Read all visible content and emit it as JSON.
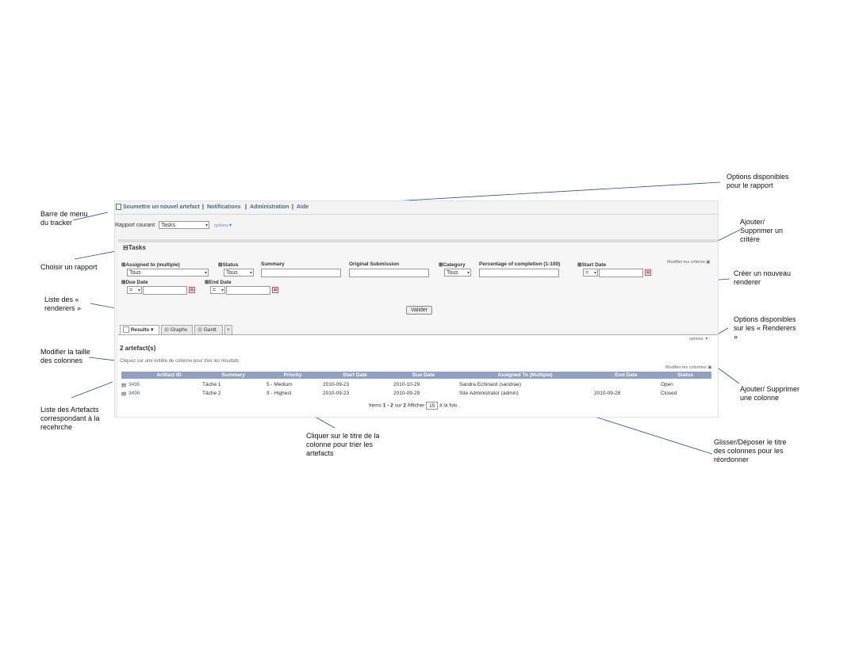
{
  "menu": {
    "submit": "Soumettre un nouvel artefact",
    "notifications": "Notifications",
    "administration": "Administration",
    "help": "Aide"
  },
  "report": {
    "label": "Rapport courant",
    "selected": "Tasks",
    "options": "options"
  },
  "criteria": {
    "title": "Tasks",
    "modify_link": "Modifier les critères",
    "assigned_to": {
      "label": "Assigned to (multiple)",
      "value": "Tous"
    },
    "status": {
      "label": "Status",
      "value": "Tous"
    },
    "summary": {
      "label": "Summary"
    },
    "original_submission": {
      "label": "Original Submission"
    },
    "category": {
      "label": "Category",
      "value": "Tous"
    },
    "percentage": {
      "label": "Percentage of completion (1-100)"
    },
    "start_date": {
      "label": "Start Date",
      "op": "="
    },
    "due_date": {
      "label": "Due Date",
      "op": "="
    },
    "end_date": {
      "label": "End Date",
      "op": "="
    },
    "submit": "Valider"
  },
  "tabs": [
    {
      "label": "Results"
    },
    {
      "label": "Graphs"
    },
    {
      "label": "Gantt"
    },
    {
      "label": "+"
    }
  ],
  "results": {
    "count": "2 artefact(s)",
    "hint": "Cliquez sur une entête de colonne pour trier les résultats",
    "options": "options",
    "modify_columns": "Modifier les colonnes",
    "columns": [
      "Artifact ID",
      "Summary",
      "Priority",
      "Start Date",
      "Due Date",
      "Assigned To (Multiple)",
      "End Date",
      "Status"
    ],
    "rows": [
      {
        "id": "3495",
        "summary": "Tâche 1",
        "priority": "5 - Medium",
        "start": "2010-09-23",
        "due": "2010-10-29",
        "assigned": "Sandra Echinard (sandrae)",
        "end": "",
        "status": "Open"
      },
      {
        "id": "3496",
        "summary": "Tâche 2",
        "priority": "9 - Highest",
        "start": "2010-09-23",
        "due": "2010-09-29",
        "assigned": "Site Administrator (admin)",
        "end": "2010-09-28",
        "status": "Closed"
      }
    ],
    "pager": {
      "prefix": "Items",
      "range": "1 - 2",
      "of": "sur",
      "total": "2",
      "show": "Afficher",
      "per_page": "15",
      "suffix": "à la fois."
    }
  },
  "annotations": {
    "menubar": "Barre de menu du tracker",
    "choose_report": "Choisir un rapport",
    "renderers_list": "Liste des « renderers »",
    "resize_columns": "Modifier la taille des colonnes",
    "artifacts_list": "Liste des Artefacts correspondant à la recehrche",
    "report_options": "Options disponibles pour le rapport",
    "add_remove_criteria": "Ajouter/ Supprimer un critère",
    "new_renderer": "Créer un nouveau renderer",
    "renderer_options": "Options disponibles sur les « Renderers »",
    "add_remove_column": "Ajouter/ Supprimer une colonne",
    "sort_columns": "Cliquer sur le titre de la colonne pour trier les artefacts",
    "reorder_columns": "Glisser/Déposer le titre des colonnes pour les réordonner"
  }
}
